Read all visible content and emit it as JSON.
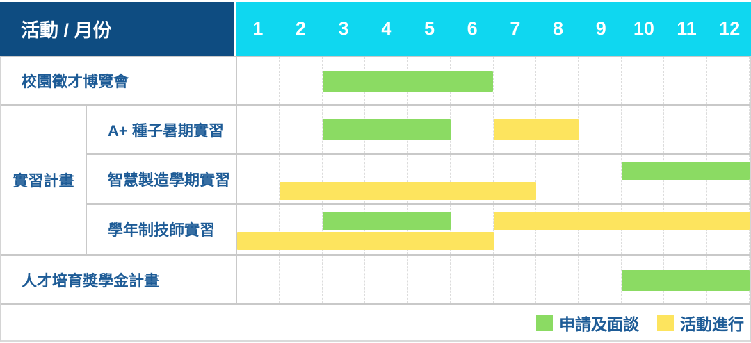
{
  "header": {
    "corner_label": "活動 / 月份",
    "months": [
      "1",
      "2",
      "3",
      "4",
      "5",
      "6",
      "7",
      "8",
      "9",
      "10",
      "11",
      "12"
    ]
  },
  "colors": {
    "corner_bg": "#0E4C81",
    "months_bg": "#0FD7F0",
    "apply_green": "#8BDB63",
    "activity_yellow": "#FDE45E",
    "label_text": "#1D5B96",
    "grid_solid": "#C9C9C9",
    "grid_dashed": "#DCDCDC"
  },
  "legend": [
    {
      "type": "apply",
      "label": "申請及面談"
    },
    {
      "type": "activity",
      "label": "活動進行"
    }
  ],
  "chart_data": {
    "type": "gantt",
    "unit": "month",
    "axis": {
      "min": 1,
      "max": 12,
      "ticks": [
        "1",
        "2",
        "3",
        "4",
        "5",
        "6",
        "7",
        "8",
        "9",
        "10",
        "11",
        "12"
      ]
    },
    "corner_title": "活動 / 月份",
    "group_label": "實習計畫",
    "rows": [
      {
        "label": "校園徵才博覽會",
        "group": null,
        "lines": 1,
        "bars": [
          {
            "type": "apply",
            "start": 3,
            "end": 6,
            "line": 1
          }
        ]
      },
      {
        "label": "A+ 種子暑期實習",
        "group": "實習計畫",
        "lines": 1,
        "bars": [
          {
            "type": "apply",
            "start": 3,
            "end": 5,
            "line": 1
          },
          {
            "type": "activity",
            "start": 7,
            "end": 8,
            "line": 1
          }
        ]
      },
      {
        "label": "智慧製造學期實習",
        "group": "實習計畫",
        "lines": 2,
        "bars": [
          {
            "type": "apply",
            "start": 10,
            "end": 12,
            "line": 1
          },
          {
            "type": "activity",
            "start": 2,
            "end": 7,
            "line": 2
          }
        ]
      },
      {
        "label": "學年制技師實習",
        "group": "實習計畫",
        "lines": 2,
        "bars": [
          {
            "type": "apply",
            "start": 3,
            "end": 5,
            "line": 1
          },
          {
            "type": "activity",
            "start": 7,
            "end": 12,
            "line": 1
          },
          {
            "type": "activity",
            "start": 1,
            "end": 6,
            "line": 2
          }
        ]
      },
      {
        "label": "人才培育獎學金計畫",
        "group": null,
        "lines": 1,
        "bars": [
          {
            "type": "apply",
            "start": 10,
            "end": 12,
            "line": 1
          }
        ]
      }
    ],
    "legend": [
      {
        "type": "apply",
        "label": "申請及面談",
        "color": "#8BDB63"
      },
      {
        "type": "activity",
        "label": "活動進行",
        "color": "#FDE45E"
      }
    ]
  }
}
